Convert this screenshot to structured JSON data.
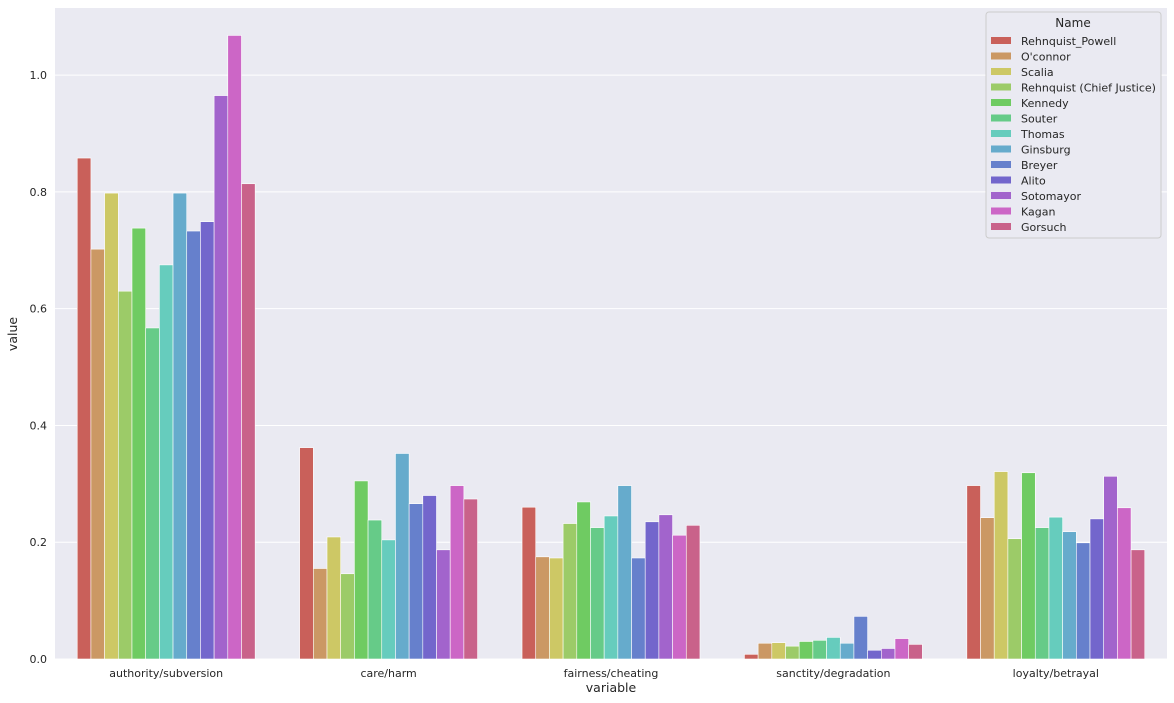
{
  "chart_data": {
    "type": "bar",
    "xlabel": "variable",
    "ylabel": "value",
    "ylim": [
      0,
      1.115
    ],
    "yticks": [
      "0.0",
      "0.2",
      "0.4",
      "0.6",
      "0.8",
      "1.0"
    ],
    "categories": [
      "authority/subversion",
      "care/harm",
      "fairness/cheating",
      "sanctity/degradation",
      "loyalty/betrayal"
    ],
    "legend_title": "Name",
    "legend_position": "top-right",
    "grid": true,
    "series": [
      {
        "name": "Rehnquist_Powell",
        "color": "#c9605a",
        "values": [
          0.858,
          0.362,
          0.26,
          0.008,
          0.297
        ]
      },
      {
        "name": "O'connor",
        "color": "#cb9864",
        "values": [
          0.702,
          0.155,
          0.175,
          0.027,
          0.242
        ]
      },
      {
        "name": "Scalia",
        "color": "#cdc865",
        "values": [
          0.798,
          0.209,
          0.173,
          0.028,
          0.321
        ]
      },
      {
        "name": "Rehnquist (Chief Justice)",
        "color": "#9ccb68",
        "values": [
          0.63,
          0.146,
          0.232,
          0.022,
          0.206
        ]
      },
      {
        "name": "Kennedy",
        "color": "#6fcb62",
        "values": [
          0.738,
          0.305,
          0.269,
          0.03,
          0.319
        ]
      },
      {
        "name": "Souter",
        "color": "#66cb88",
        "values": [
          0.567,
          0.238,
          0.225,
          0.032,
          0.225
        ]
      },
      {
        "name": "Thomas",
        "color": "#66ccbd",
        "values": [
          0.675,
          0.204,
          0.245,
          0.037,
          0.243
        ]
      },
      {
        "name": "Ginsburg",
        "color": "#66abcc",
        "values": [
          0.798,
          0.352,
          0.297,
          0.027,
          0.218
        ]
      },
      {
        "name": "Breyer",
        "color": "#6680cc",
        "values": [
          0.733,
          0.266,
          0.173,
          0.073,
          0.199
        ]
      },
      {
        "name": "Alito",
        "color": "#7366cc",
        "values": [
          0.749,
          0.28,
          0.235,
          0.015,
          0.24
        ]
      },
      {
        "name": "Sotomayor",
        "color": "#a264cc",
        "values": [
          0.965,
          0.187,
          0.247,
          0.018,
          0.313
        ]
      },
      {
        "name": "Kagan",
        "color": "#cc66c6",
        "values": [
          1.068,
          0.297,
          0.212,
          0.035,
          0.259
        ]
      },
      {
        "name": "Gorsuch",
        "color": "#c9628a",
        "values": [
          0.814,
          0.274,
          0.229,
          0.025,
          0.187
        ]
      }
    ]
  }
}
